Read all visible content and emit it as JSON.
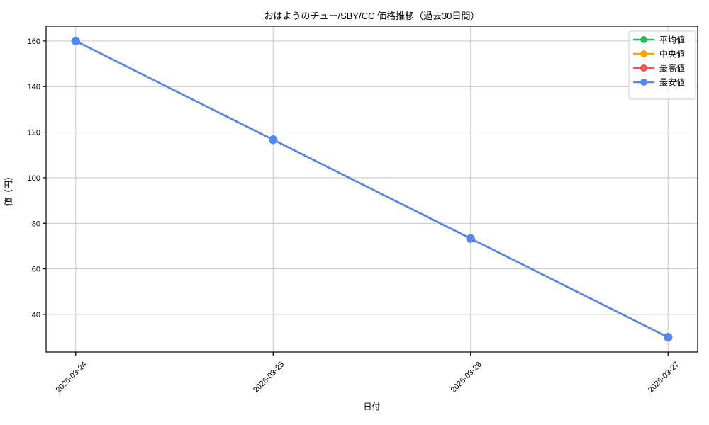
{
  "chart_data": {
    "type": "line",
    "title": "おはようのチュー/SBY/CC 価格推移（過去30日間）",
    "xlabel": "日付",
    "ylabel": "値（円）",
    "categories": [
      "2026-03-24",
      "2026-03-25",
      "2026-03-26",
      "2026-03-27"
    ],
    "series": [
      {
        "name": "平均値",
        "color": "#2EB857",
        "values": [
          160,
          116.67,
          73.33,
          30
        ]
      },
      {
        "name": "中央値",
        "color": "#FFA502",
        "values": [
          160,
          116.67,
          73.33,
          30
        ]
      },
      {
        "name": "最高値",
        "color": "#F15353",
        "values": [
          160,
          116.67,
          73.33,
          30
        ]
      },
      {
        "name": "最安値",
        "color": "#5289F0",
        "values": [
          160,
          116.67,
          73.33,
          30
        ]
      }
    ],
    "yticks": [
      40,
      60,
      80,
      100,
      120,
      140,
      160
    ],
    "xlim": [
      -0.15,
      3.15
    ],
    "ylim": [
      23.5,
      166.5
    ],
    "grid": true,
    "grid_color": "#c9c9c9",
    "axis_color": "#000000",
    "legend_position": "upper right",
    "marker": "circle",
    "x_tick_rotation": 45
  }
}
